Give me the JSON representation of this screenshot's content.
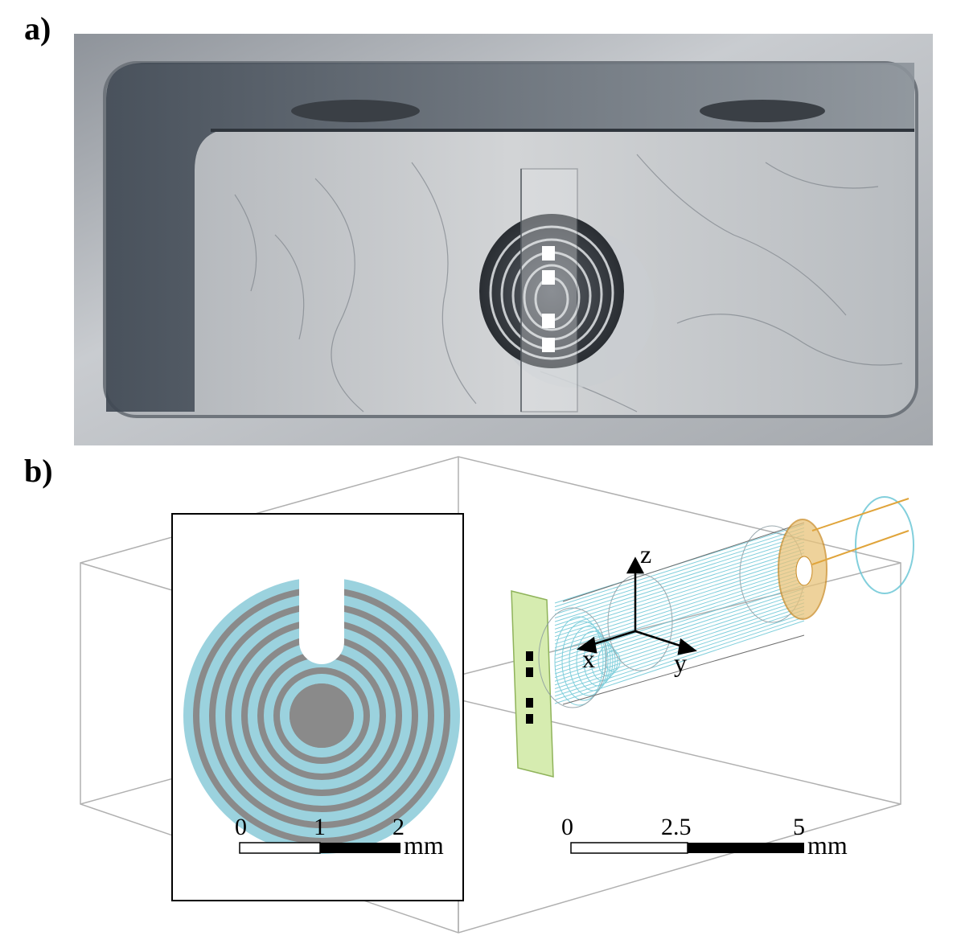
{
  "panels": {
    "a": {
      "label": "a)"
    },
    "b": {
      "label": "b)"
    }
  },
  "inset_scale": {
    "ticks": [
      "0",
      "1",
      "2"
    ],
    "unit": "mm"
  },
  "main_scale": {
    "ticks": [
      "0",
      "2.5",
      "5"
    ],
    "unit": "mm"
  },
  "axes": {
    "z": "z",
    "x": "x",
    "y": "y"
  },
  "colors": {
    "electrode_blue": "#9bd2de",
    "gap_gray": "#8a8a8a",
    "plate_green": "#d6ecb0",
    "ring_orange": "#d9a23a",
    "field_line": "#6cc7d6"
  }
}
